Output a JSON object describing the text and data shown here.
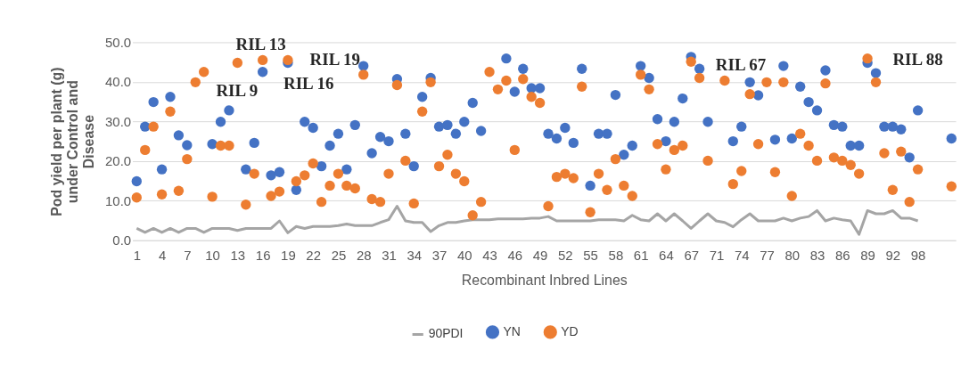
{
  "chart_data": {
    "type": "scatter",
    "xlabel": "Recombinant Inbred Lines",
    "ylabel": "Pod yield per plant (g) under Control  and Disease",
    "categories": [
      "1",
      null,
      null,
      "4",
      null,
      null,
      "7",
      null,
      null,
      "10",
      null,
      null,
      "13",
      null,
      null,
      "16",
      null,
      null,
      "19",
      null,
      null,
      "22",
      null,
      null,
      "25",
      null,
      null,
      "28",
      null,
      null,
      "31",
      null,
      null,
      "34",
      null,
      null,
      "37",
      null,
      null,
      "40",
      null,
      null,
      "43",
      null,
      null,
      "46",
      null,
      null,
      "49",
      null,
      null,
      "52",
      null,
      null,
      "55",
      null,
      null,
      "58",
      null,
      null,
      "61",
      null,
      null,
      "64",
      null,
      null,
      "67",
      null,
      null,
      "71",
      null,
      null,
      "74",
      null,
      null,
      "77",
      null,
      null,
      "80",
      null,
      null,
      "83",
      null,
      null,
      "86",
      null,
      null,
      "89",
      null,
      null,
      "92",
      null,
      null,
      "98",
      null,
      null,
      null,
      null
    ],
    "series": [
      {
        "name": "90PDI",
        "type": "line",
        "color": "#a5a5a5",
        "values": [
          3,
          2,
          3,
          2,
          3,
          2,
          3,
          3,
          2,
          3,
          3,
          3,
          2.5,
          3,
          3,
          3,
          3,
          4.9,
          1.9,
          3.5,
          3,
          3.5,
          3.5,
          3.5,
          3.7,
          4.1,
          3.7,
          3.7,
          3.7,
          4.5,
          5.2,
          8.6,
          4.9,
          4.5,
          4.5,
          2.2,
          3.7,
          4.5,
          4.5,
          4.9,
          5.2,
          5.2,
          5.2,
          5.4,
          5.4,
          5.4,
          5.4,
          5.6,
          5.6,
          6.0,
          4.9,
          4.9,
          4.9,
          4.9,
          4.9,
          5.2,
          5.2,
          5.2,
          4.9,
          6.3,
          5.2,
          4.9,
          6.7,
          4.9,
          6.7,
          4.9,
          3.0,
          4.9,
          6.7,
          4.9,
          4.5,
          3.4,
          5.2,
          6.7,
          4.9,
          4.9,
          4.9,
          5.6,
          4.9,
          5.6,
          6.0,
          7.5,
          4.9,
          5.6,
          5.2,
          4.9,
          1.5,
          7.5,
          6.7,
          6.7,
          7.5,
          5.6,
          5.6,
          4.9,
          null,
          null,
          null,
          null
        ]
      },
      {
        "name": "YN",
        "type": "scatter",
        "marker": "circle",
        "color": "#4472c4",
        "values": [
          14.9,
          28.7,
          34.9,
          17.9,
          36.2,
          26.5,
          24.0,
          null,
          null,
          24.3,
          29.9,
          32.8,
          null,
          17.9,
          24.6,
          42.5,
          16.4,
          17.2,
          44.8,
          12.7,
          29.9,
          28.4,
          18.7,
          23.9,
          26.9,
          17.9,
          29.1,
          44.0,
          22.0,
          26.1,
          25.0,
          40.7,
          26.9,
          18.7,
          36.2,
          41.0,
          28.7,
          29.1,
          26.9,
          29.9,
          34.7,
          27.6,
          null,
          null,
          45.9,
          37.5,
          43.3,
          38.4,
          38.4,
          26.9,
          25.7,
          28.4,
          24.6,
          43.3,
          13.8,
          26.9,
          26.9,
          36.7,
          21.6,
          23.9,
          44.0,
          41.0,
          30.6,
          25.0,
          29.9,
          35.8,
          46.3,
          43.3,
          29.9,
          null,
          null,
          25.0,
          28.7,
          39.9,
          36.6,
          null,
          25.4,
          44.0,
          25.7,
          38.8,
          34.9,
          32.8,
          42.9,
          29.1,
          28.7,
          23.9,
          23.9,
          44.8,
          42.2,
          28.7,
          28.7,
          28.0,
          20.9,
          32.8,
          null,
          null,
          null,
          25.7
        ]
      },
      {
        "name": "YD",
        "type": "scatter",
        "marker": "circle",
        "color": "#ed7d31",
        "values": [
          10.8,
          22.8,
          28.7,
          11.6,
          32.5,
          12.5,
          20.5,
          39.9,
          42.5,
          11.0,
          23.9,
          23.9,
          44.8,
          9.0,
          16.8,
          45.5,
          11.2,
          12.3,
          45.5,
          14.9,
          16.4,
          19.4,
          9.7,
          13.8,
          16.8,
          13.8,
          13.1,
          41.8,
          10.4,
          9.7,
          16.8,
          39.2,
          20.1,
          9.3,
          32.5,
          39.9,
          18.7,
          21.6,
          16.8,
          14.9,
          6.3,
          9.7,
          42.5,
          38.1,
          40.3,
          22.8,
          40.7,
          36.2,
          34.7,
          8.6,
          16.0,
          16.8,
          15.7,
          38.8,
          7.1,
          16.8,
          12.7,
          20.5,
          13.8,
          11.2,
          41.8,
          38.1,
          24.3,
          17.9,
          22.8,
          23.9,
          45.1,
          41.0,
          20.1,
          null,
          40.3,
          14.2,
          17.5,
          36.9,
          24.3,
          39.9,
          17.2,
          39.9,
          11.2,
          26.9,
          23.9,
          20.1,
          39.6,
          20.9,
          20.1,
          19.0,
          16.8,
          45.9,
          39.9,
          22.0,
          12.7,
          22.4,
          9.7,
          17.9,
          null,
          null,
          null,
          13.6
        ]
      }
    ],
    "ylim": [
      0,
      50
    ],
    "yticks": [
      {
        "value": 0,
        "label": "0.0"
      },
      {
        "value": 10,
        "label": "10.0"
      },
      {
        "value": 20,
        "label": "20.0"
      },
      {
        "value": 30,
        "label": "30.0"
      },
      {
        "value": 40,
        "label": "40.0"
      },
      {
        "value": 50,
        "label": "50.0"
      }
    ],
    "grid": "y",
    "legend": "bottom",
    "line_style": "solid",
    "annotations": [
      "RIL 13",
      "RIL 9",
      "RIL 19",
      "RIL 16",
      "RIL 67",
      "RIL 88"
    ]
  }
}
